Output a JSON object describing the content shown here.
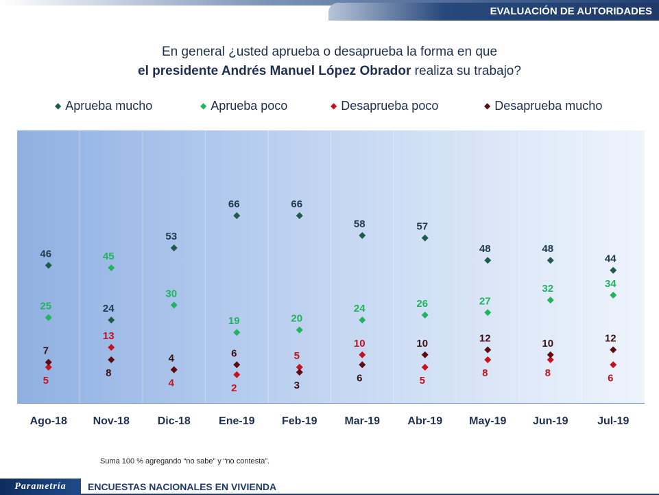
{
  "header": {
    "section_title": "EVALUACIÓN DE AUTORIDADES"
  },
  "question": {
    "line1": "En general ¿usted aprueba o desaprueba la forma en que",
    "line2_bold": "el presidente Andrés Manuel López Obrador",
    "line2_rest": " realiza su trabajo?"
  },
  "legend": [
    {
      "label": "Aprueba mucho",
      "color": "#1f5a4c"
    },
    {
      "label": "Aprueba poco",
      "color": "#22b35e"
    },
    {
      "label": "Desaprueba poco",
      "color": "#c4121f"
    },
    {
      "label": "Desaprueba mucho",
      "color": "#5a0c10"
    }
  ],
  "chart_data": {
    "type": "scatter",
    "title": "",
    "xlabel": "",
    "ylabel": "",
    "categories": [
      "Ago-18",
      "Nov-18",
      "Dic-18",
      "Ene-19",
      "Feb-19",
      "Mar-19",
      "Abr-19",
      "May-19",
      "Jun-19",
      "Jul-19"
    ],
    "ylim": [
      0,
      80
    ],
    "grid": false,
    "legend_position": "top",
    "series": [
      {
        "name": "Aprueba mucho",
        "color": "#1f5a4c",
        "label_color": "#1f3a4a",
        "values": [
          46,
          24,
          53,
          66,
          66,
          58,
          57,
          48,
          48,
          44
        ]
      },
      {
        "name": "Aprueba poco",
        "color": "#22b35e",
        "label_color": "#22b35e",
        "values": [
          25,
          45,
          30,
          19,
          20,
          24,
          26,
          27,
          32,
          34
        ]
      },
      {
        "name": "Desaprueba poco",
        "color": "#c4121f",
        "label_color": "#c4121f",
        "values": [
          5,
          13,
          4,
          2,
          5,
          10,
          5,
          8,
          8,
          6
        ]
      },
      {
        "name": "Desaprueba mucho",
        "color": "#5a0c10",
        "label_color": "#3a1010",
        "values": [
          7,
          8,
          4,
          6,
          3,
          6,
          10,
          12,
          10,
          12
        ]
      }
    ]
  },
  "footnote": "Suma 100 %  agregando “no sabe” y “no contesta”.",
  "footer": {
    "logo_text": "Parametría",
    "survey_text": "ENCUESTAS NACIONALES  EN VIVIENDA"
  }
}
